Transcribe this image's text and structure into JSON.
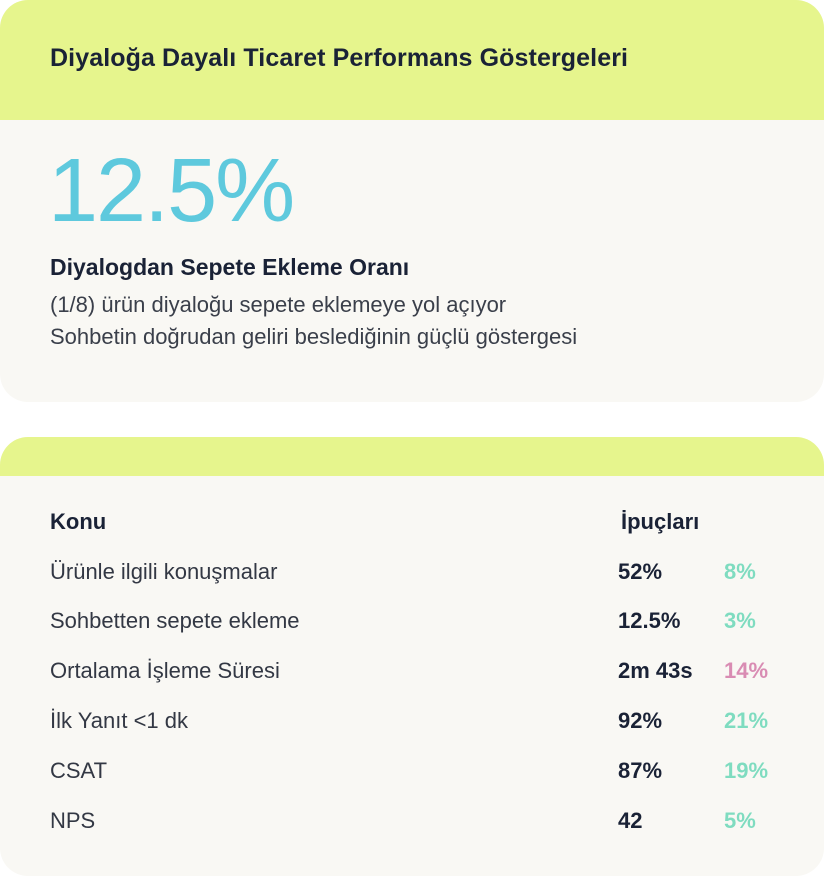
{
  "summary_card": {
    "title": "Diyaloğa Dayalı Ticaret Performans Göstergeleri",
    "big_value": "12.5%",
    "metric_label": "Diyalogdan Sepete Ekleme Oranı",
    "description_line_1": "(1/8) ürün diyaloğu sepete eklemeye yol açıyor",
    "description_line_2": "Sohbetin doğrudan geliri beslediğinin güçlü göstergesi"
  },
  "table_card": {
    "header_topic": "Konu",
    "header_tips": "İpuçları",
    "rows": [
      {
        "topic": "Ürünle ilgili konuşmalar",
        "value": "52%",
        "delta": "8%",
        "trend": "up"
      },
      {
        "topic": "Sohbetten sepete ekleme",
        "value": "12.5%",
        "delta": "3%",
        "trend": "up"
      },
      {
        "topic": "Ortalama İşleme Süresi",
        "value": "2m 43s",
        "delta": "14%",
        "trend": "down"
      },
      {
        "topic": "İlk Yanıt <1 dk",
        "value": "92%",
        "delta": "21%",
        "trend": "up"
      },
      {
        "topic": "CSAT",
        "value": "87%",
        "delta": "19%",
        "trend": "up"
      },
      {
        "topic": "NPS",
        "value": "42",
        "delta": "5%",
        "trend": "up"
      }
    ]
  },
  "colors": {
    "header_bg": "#e6f58d",
    "card_bg": "#f9f8f4",
    "big_value": "#5ec9dd",
    "delta_up": "#7fdcc0",
    "delta_down": "#d98cb3"
  }
}
